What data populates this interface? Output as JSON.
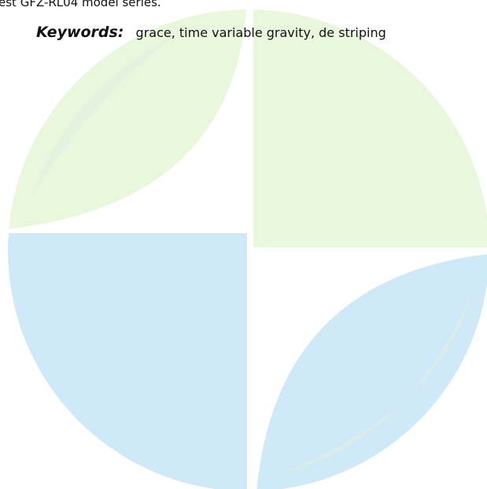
{
  "text": {
    "fragment": "est GFZ-RL04 model series.",
    "keywords_label": "Keywords:",
    "keywords": "grace, time variable gravity, de striping"
  }
}
